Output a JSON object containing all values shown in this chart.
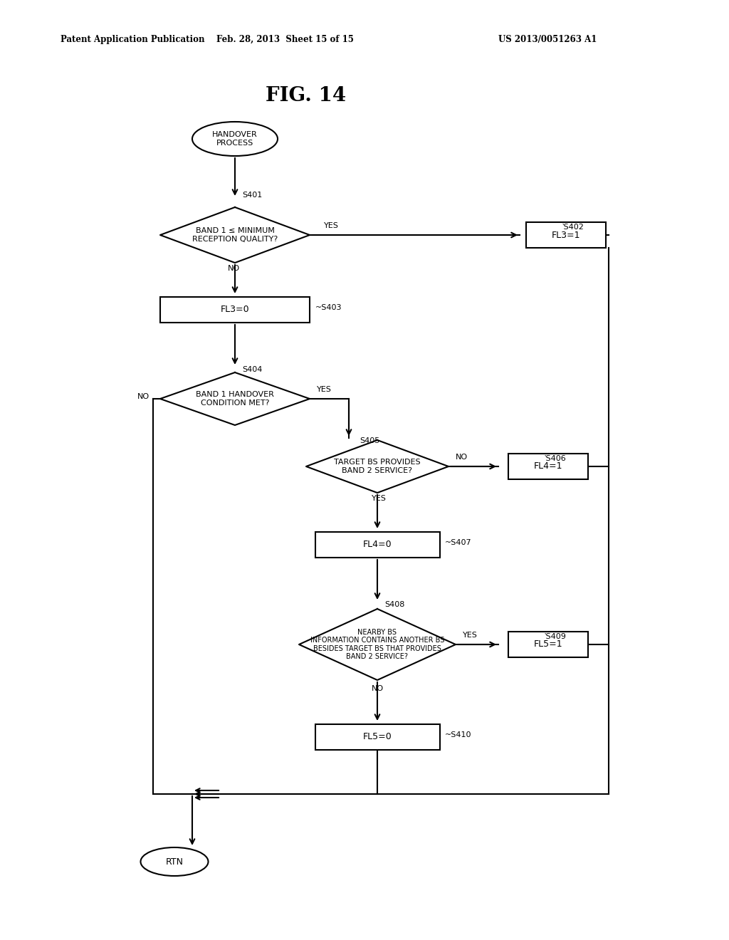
{
  "title": "FIG. 14",
  "header_left": "Patent Application Publication",
  "header_center": "Feb. 28, 2013  Sheet 15 of 15",
  "header_right": "US 2013/0051263 A1",
  "bg_color": "#ffffff",
  "fig_width": 10.24,
  "fig_height": 13.2
}
